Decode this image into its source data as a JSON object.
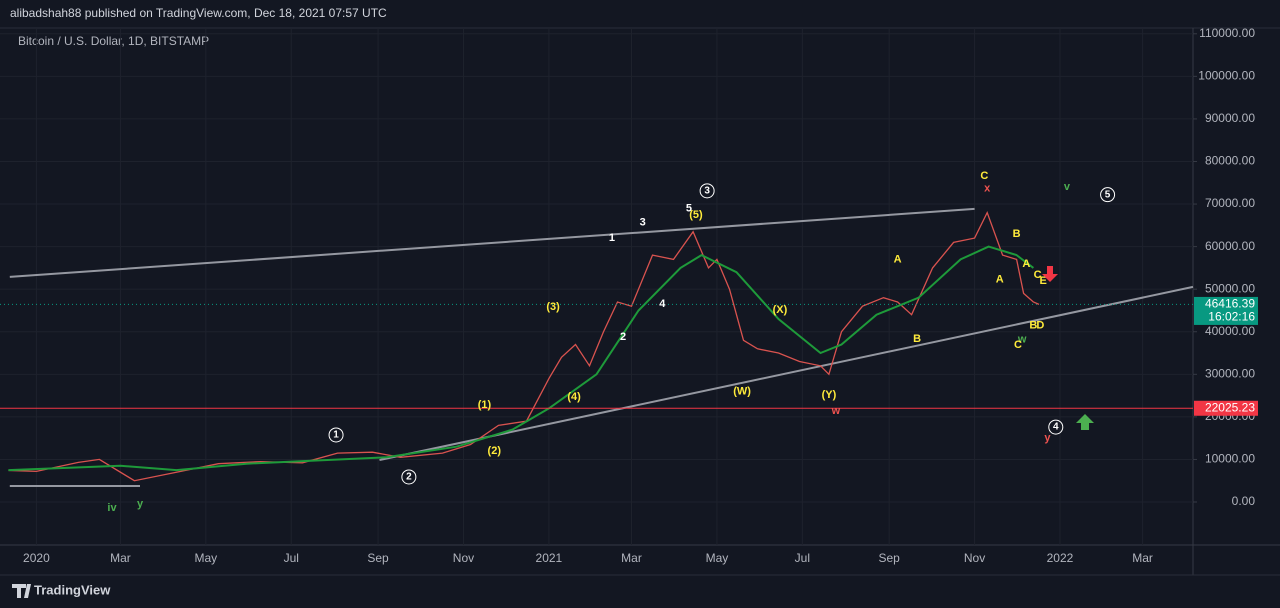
{
  "header": {
    "publisher": "alibadshah88 published on TradingView.com, Dec 18, 2021 07:57 UTC",
    "logo": "TradingView"
  },
  "chart_data": {
    "type": "line",
    "title": "Bitcoin / U.S. Dollar, 1D, BITSTAMP",
    "xlim": [
      -26,
      826
    ],
    "ylim": [
      -10100,
      112300
    ],
    "xticks": [
      {
        "value": 0,
        "label": "2020"
      },
      {
        "value": 60,
        "label": "Mar"
      },
      {
        "value": 121,
        "label": "May"
      },
      {
        "value": 182,
        "label": "Jul"
      },
      {
        "value": 244,
        "label": "Sep"
      },
      {
        "value": 305,
        "label": "Nov"
      },
      {
        "value": 366,
        "label": "2021"
      },
      {
        "value": 425,
        "label": "Mar"
      },
      {
        "value": 486,
        "label": "May"
      },
      {
        "value": 547,
        "label": "Jul"
      },
      {
        "value": 609,
        "label": "Sep"
      },
      {
        "value": 670,
        "label": "Nov"
      },
      {
        "value": 731,
        "label": "2022"
      },
      {
        "value": 790,
        "label": "Mar"
      }
    ],
    "yticks": [
      {
        "value": 0,
        "label": "0.00"
      },
      {
        "value": 10000,
        "label": "10000.00"
      },
      {
        "value": 20000,
        "label": "20000.00"
      },
      {
        "value": 30000,
        "label": "30000.00"
      },
      {
        "value": 40000,
        "label": "40000.00"
      },
      {
        "value": 50000,
        "label": "50000.00"
      },
      {
        "value": 60000,
        "label": "60000.00"
      },
      {
        "value": 70000,
        "label": "70000.00"
      },
      {
        "value": 80000,
        "label": "80000.00"
      },
      {
        "value": 90000,
        "label": "90000.00"
      },
      {
        "value": 100000,
        "label": "100000.00"
      },
      {
        "value": 110000,
        "label": "110000.00"
      }
    ],
    "grid": true,
    "series": [
      {
        "color": "#d9534f",
        "x": [
          -20,
          0,
          30,
          45,
          70,
          100,
          130,
          160,
          190,
          215,
          240,
          260,
          290,
          310,
          330,
          350,
          366,
          375,
          385,
          395,
          405,
          415,
          425,
          440,
          455,
          469,
          480,
          486,
          495,
          505,
          515,
          530,
          545,
          560,
          566,
          575,
          590,
          605,
          615,
          625,
          640,
          655,
          670,
          679,
          690,
          700,
          705,
          712,
          716
        ],
        "values": [
          7400,
          7200,
          9300,
          10000,
          5000,
          7000,
          9000,
          9500,
          9200,
          11500,
          11700,
          10500,
          11500,
          13500,
          18000,
          19000,
          29000,
          34000,
          37000,
          32000,
          40000,
          47000,
          46000,
          58000,
          57000,
          63500,
          55000,
          57000,
          50000,
          38000,
          36000,
          35000,
          33000,
          32000,
          30000,
          40000,
          46000,
          48000,
          47000,
          44000,
          55000,
          61000,
          62000,
          68000,
          58000,
          57000,
          49000,
          47000,
          46416.39
        ]
      },
      {
        "color": "#1e9a3a",
        "x": [
          -20,
          60,
          100,
          150,
          250,
          300,
          340,
          366,
          400,
          430,
          460,
          475,
          500,
          530,
          560,
          575,
          600,
          630,
          660,
          680,
          700,
          712
        ],
        "values": [
          7500,
          8500,
          7500,
          9000,
          10500,
          13000,
          17000,
          22000,
          30000,
          45000,
          55000,
          58000,
          54000,
          43000,
          35000,
          37000,
          44000,
          48000,
          57000,
          60000,
          58000,
          55000
        ]
      }
    ],
    "trendlines": [
      {
        "x": [
          -19,
          670
        ],
        "values": [
          52880,
          68860
        ]
      },
      {
        "x": [
          245,
          826
        ],
        "values": [
          9870,
          50530
        ]
      },
      {
        "x": [
          -19,
          74
        ],
        "values": [
          3760,
          3760
        ]
      }
    ],
    "price_labels": [
      {
        "value": 46416.39,
        "color": "#089981",
        "countdown": "16:02:16"
      },
      {
        "value": 22025.23,
        "color": "#f23645"
      }
    ],
    "annotations": [
      {
        "text": "iv",
        "x": 54,
        "y": -1400,
        "color": "#4caf50"
      },
      {
        "text": "y",
        "x": 74,
        "y": -500,
        "color": "#4caf50"
      },
      {
        "text": "1",
        "x": 214,
        "y": 15750,
        "color": "#ffffff",
        "circled": true
      },
      {
        "text": "2",
        "x": 266,
        "y": 5880,
        "color": "#ffffff",
        "circled": true
      },
      {
        "text": "(1)",
        "x": 320,
        "y": 22800,
        "color": "#ffeb3b"
      },
      {
        "text": "(2)",
        "x": 327,
        "y": 12000,
        "color": "#ffeb3b"
      },
      {
        "text": "(3)",
        "x": 369,
        "y": 45800,
        "color": "#ffeb3b"
      },
      {
        "text": "(4)",
        "x": 384,
        "y": 24700,
        "color": "#ffeb3b"
      },
      {
        "text": "1",
        "x": 411,
        "y": 62000,
        "color": "#ffffff"
      },
      {
        "text": "2",
        "x": 419,
        "y": 38800,
        "color": "#ffffff"
      },
      {
        "text": "3",
        "x": 433,
        "y": 65600,
        "color": "#ffffff"
      },
      {
        "text": "4",
        "x": 447,
        "y": 46500,
        "color": "#ffffff"
      },
      {
        "text": "5",
        "x": 466,
        "y": 68900,
        "color": "#ffffff"
      },
      {
        "text": "(5)",
        "x": 471,
        "y": 67400,
        "color": "#ffeb3b"
      },
      {
        "text": "3",
        "x": 479,
        "y": 73100,
        "color": "#ffffff",
        "circled": true
      },
      {
        "text": "(W)",
        "x": 504,
        "y": 25900,
        "color": "#ffeb3b"
      },
      {
        "text": "(X)",
        "x": 531,
        "y": 45100,
        "color": "#ffeb3b"
      },
      {
        "text": "(Y)",
        "x": 566,
        "y": 25100,
        "color": "#ffeb3b"
      },
      {
        "text": "w",
        "x": 571,
        "y": 21400,
        "color": "#ef5350"
      },
      {
        "text": "A",
        "x": 615,
        "y": 56900,
        "color": "#ffeb3b"
      },
      {
        "text": "B",
        "x": 629,
        "y": 38300,
        "color": "#ffeb3b"
      },
      {
        "text": "C",
        "x": 677,
        "y": 76600,
        "color": "#ffeb3b"
      },
      {
        "text": "x",
        "x": 679,
        "y": 73600,
        "color": "#ef5350"
      },
      {
        "text": "B",
        "x": 700,
        "y": 63000,
        "color": "#ffeb3b"
      },
      {
        "text": "A",
        "x": 688,
        "y": 52200,
        "color": "#ffeb3b"
      },
      {
        "text": "A",
        "x": 707,
        "y": 55900,
        "color": "#ffeb3b"
      },
      {
        "text": "C",
        "x": 715,
        "y": 53300,
        "color": "#ffeb3b"
      },
      {
        "text": "E",
        "x": 719,
        "y": 51900,
        "color": "#ffeb3b"
      },
      {
        "text": "B",
        "x": 712,
        "y": 41400,
        "color": "#ffeb3b"
      },
      {
        "text": "D",
        "x": 717,
        "y": 41400,
        "color": "#ffeb3b"
      },
      {
        "text": "w",
        "x": 704,
        "y": 38100,
        "color": "#4caf50"
      },
      {
        "text": "C",
        "x": 701,
        "y": 36900,
        "color": "#ffeb3b"
      },
      {
        "text": "v",
        "x": 736,
        "y": 74000,
        "color": "#4caf50"
      },
      {
        "text": "5",
        "x": 765,
        "y": 72200,
        "color": "#ffffff",
        "circled": true
      },
      {
        "text": "4",
        "x": 728,
        "y": 17600,
        "color": "#ffffff",
        "circled": true
      },
      {
        "text": "y",
        "x": 722,
        "y": 15000,
        "color": "#ef5350"
      }
    ]
  }
}
